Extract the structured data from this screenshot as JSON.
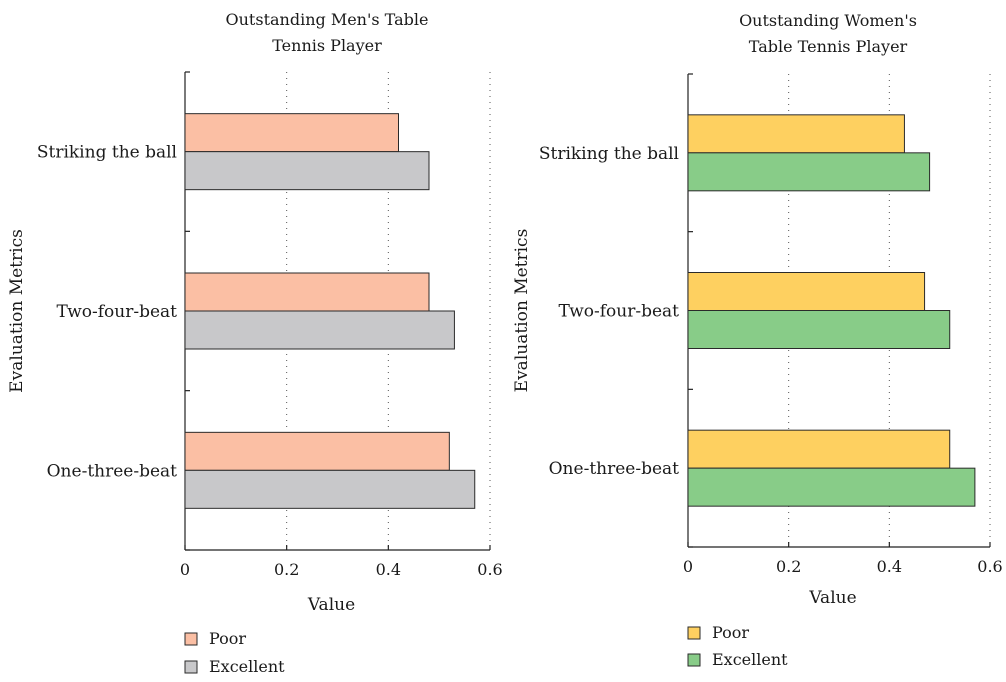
{
  "chart_data": [
    {
      "type": "bar",
      "orientation": "horizontal",
      "title": [
        "Outstanding Men's Table",
        "Tennis Player"
      ],
      "xlabel": "Value",
      "ylabel": "Evaluation Metrics",
      "xlim": [
        0,
        0.6
      ],
      "xticks": [
        0,
        0.2,
        0.4,
        0.6
      ],
      "grid": "vertical dotted",
      "legend_position": "bottom",
      "categories": [
        "Striking the ball",
        "Two-four-beat",
        "One-three-beat"
      ],
      "series": [
        {
          "name": "Poor",
          "color": "#FBBFA4",
          "values": [
            0.42,
            0.48,
            0.52
          ]
        },
        {
          "name": "Excellent",
          "color": "#C8C8CA",
          "values": [
            0.48,
            0.53,
            0.57
          ]
        }
      ]
    },
    {
      "type": "bar",
      "orientation": "horizontal",
      "title": [
        "Outstanding Women's",
        "Table Tennis Player"
      ],
      "xlabel": "Value",
      "ylabel": "Evaluation Metrics",
      "xlim": [
        0,
        0.6
      ],
      "xticks": [
        0,
        0.2,
        0.4,
        0.6
      ],
      "grid": "vertical dotted",
      "legend_position": "bottom",
      "categories": [
        "Striking the ball",
        "Two-four-beat",
        "One-three-beat"
      ],
      "series": [
        {
          "name": "Poor",
          "color": "#FED060",
          "values": [
            0.43,
            0.47,
            0.52
          ]
        },
        {
          "name": "Excellent",
          "color": "#88CC88",
          "values": [
            0.48,
            0.52,
            0.57
          ]
        }
      ]
    }
  ]
}
